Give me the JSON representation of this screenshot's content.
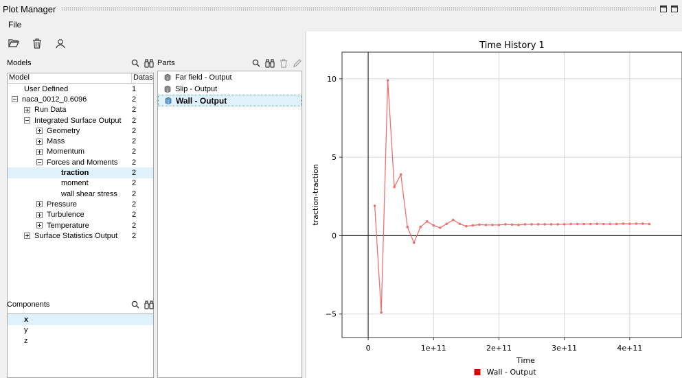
{
  "window": {
    "title": "Plot Manager"
  },
  "menu": {
    "file": "File"
  },
  "models": {
    "label": "Models",
    "col_model": "Model",
    "col_datasets": "Datas",
    "rows": [
      {
        "label": "User Defined",
        "count": "1",
        "indent": 1,
        "exp": "none",
        "bold": false,
        "sel": false
      },
      {
        "label": "naca_0012_0.6096",
        "count": "2",
        "indent": 0,
        "exp": "minus",
        "bold": false,
        "sel": false
      },
      {
        "label": "Run Data",
        "count": "2",
        "indent": 1,
        "exp": "plus",
        "bold": false,
        "sel": false
      },
      {
        "label": "Integrated Surface Output",
        "count": "2",
        "indent": 1,
        "exp": "minus",
        "bold": false,
        "sel": false
      },
      {
        "label": "Geometry",
        "count": "2",
        "indent": 2,
        "exp": "plus",
        "bold": false,
        "sel": false
      },
      {
        "label": "Mass",
        "count": "2",
        "indent": 2,
        "exp": "plus",
        "bold": false,
        "sel": false
      },
      {
        "label": "Momentum",
        "count": "2",
        "indent": 2,
        "exp": "plus",
        "bold": false,
        "sel": false
      },
      {
        "label": "Forces and Moments",
        "count": "2",
        "indent": 2,
        "exp": "minus",
        "bold": false,
        "sel": false
      },
      {
        "label": "traction",
        "count": "2",
        "indent": 4,
        "exp": "none",
        "bold": true,
        "sel": true
      },
      {
        "label": "moment",
        "count": "2",
        "indent": 4,
        "exp": "none",
        "bold": false,
        "sel": false
      },
      {
        "label": "wall shear stress",
        "count": "2",
        "indent": 4,
        "exp": "none",
        "bold": false,
        "sel": false
      },
      {
        "label": "Pressure",
        "count": "2",
        "indent": 2,
        "exp": "plus",
        "bold": false,
        "sel": false
      },
      {
        "label": "Turbulence",
        "count": "2",
        "indent": 2,
        "exp": "plus",
        "bold": false,
        "sel": false
      },
      {
        "label": "Temperature",
        "count": "2",
        "indent": 2,
        "exp": "plus",
        "bold": false,
        "sel": false
      },
      {
        "label": "Surface Statistics Output",
        "count": "2",
        "indent": 1,
        "exp": "plus",
        "bold": false,
        "sel": false
      }
    ]
  },
  "components": {
    "label": "Components",
    "items": [
      "x",
      "y",
      "z"
    ],
    "selected": 0
  },
  "parts": {
    "label": "Parts",
    "items": [
      "Far field - Output",
      "Slip - Output",
      "Wall - Output"
    ],
    "selected": 2
  },
  "icons": [
    "open-folder-icon",
    "trash-icon",
    "user-icon",
    "search-icon",
    "binoculars-icon",
    "pencil-icon"
  ],
  "chart_data": {
    "type": "line",
    "title": "Time History 1",
    "xlabel": "Time",
    "ylabel": "traction-traction",
    "xlim": [
      -40000000000.0,
      480000000000.0
    ],
    "ylim": [
      -6.5,
      11.7
    ],
    "xticks": [
      0,
      100000000000.0,
      200000000000.0,
      300000000000.0,
      400000000000.0
    ],
    "xtick_labels": [
      "0",
      "1e+11",
      "2e+11",
      "3e+11",
      "4e+11"
    ],
    "yticks": [
      -5,
      0,
      5,
      10
    ],
    "ytick_labels": [
      "−5",
      "0",
      "5",
      "10"
    ],
    "grid": true,
    "legend_position": "bottom",
    "color": "#f07070",
    "legend_color": "#e00000",
    "series": [
      {
        "name": "Wall - Output",
        "x": [
          10000000000.0,
          20000000000.0,
          30000000000.0,
          40000000000.0,
          50000000000.0,
          60000000000.0,
          70000000000.0,
          80000000000.0,
          90000000000.0,
          100000000000.0,
          110000000000.0,
          120000000000.0,
          130000000000.0,
          140000000000.0,
          150000000000.0,
          160000000000.0,
          170000000000.0,
          180000000000.0,
          190000000000.0,
          200000000000.0,
          210000000000.0,
          220000000000.0,
          230000000000.0,
          240000000000.0,
          250000000000.0,
          260000000000.0,
          270000000000.0,
          280000000000.0,
          290000000000.0,
          300000000000.0,
          310000000000.0,
          320000000000.0,
          330000000000.0,
          340000000000.0,
          350000000000.0,
          360000000000.0,
          370000000000.0,
          380000000000.0,
          390000000000.0,
          400000000000.0,
          410000000000.0,
          420000000000.0,
          430000000000.0
        ],
        "y": [
          1.9,
          -4.9,
          9.9,
          3.1,
          3.9,
          0.55,
          -0.45,
          0.55,
          0.9,
          0.65,
          0.5,
          0.75,
          1.0,
          0.75,
          0.6,
          0.65,
          0.7,
          0.68,
          0.68,
          0.68,
          0.72,
          0.7,
          0.68,
          0.72,
          0.72,
          0.72,
          0.72,
          0.72,
          0.72,
          0.72,
          0.74,
          0.74,
          0.74,
          0.74,
          0.75,
          0.74,
          0.74,
          0.74,
          0.76,
          0.75,
          0.76,
          0.76,
          0.74
        ]
      }
    ]
  }
}
